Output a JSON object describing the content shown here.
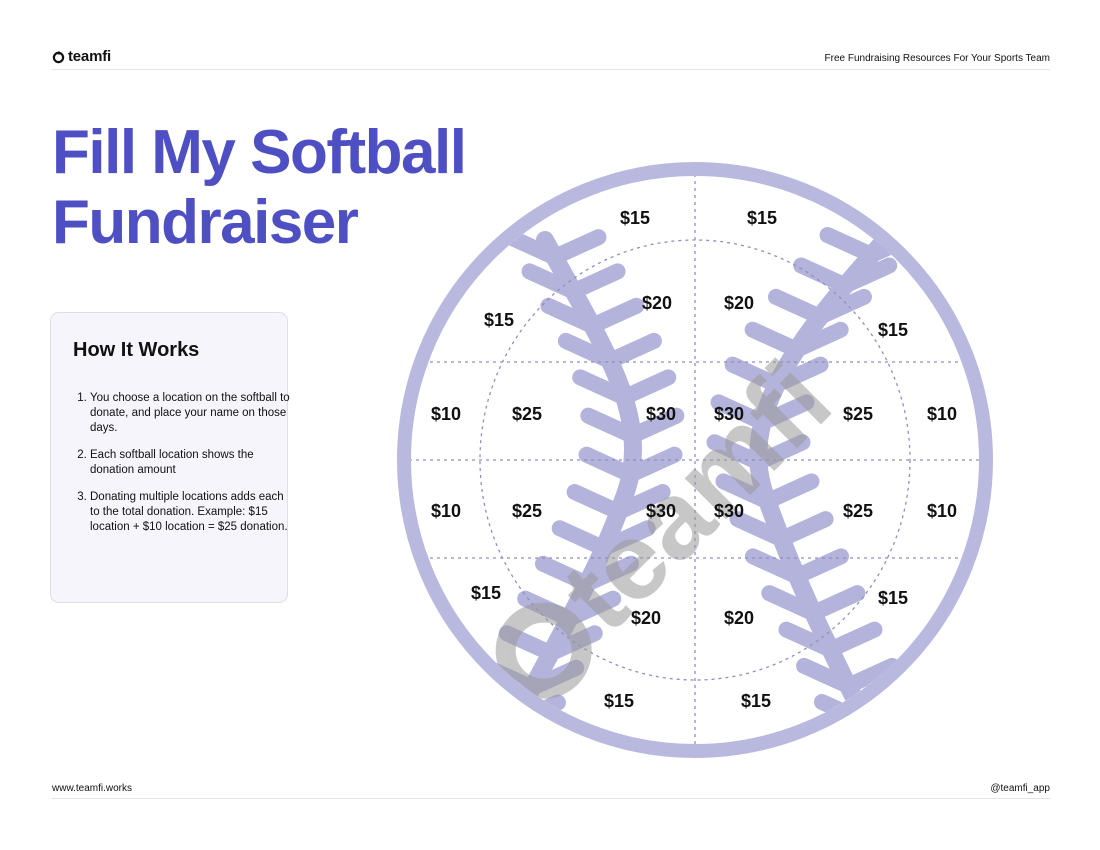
{
  "header": {
    "logo_text": "teamfi",
    "tagline": "Free Fundraising Resources For Your Sports Team"
  },
  "title": {
    "line1": "Fill My Softball",
    "line2": "Fundraiser"
  },
  "how_it_works": {
    "heading": "How It Works",
    "steps": [
      "You choose a location on the softball to donate, and place your name on those days.",
      "Each softball location shows the donation amount",
      "Donating multiple locations adds each to the total donation. Example: $15 location + $10 location = $25 donation."
    ]
  },
  "softball": {
    "watermark": "teamfi",
    "amounts": [
      "$15",
      "$15",
      "$15",
      "$20",
      "$20",
      "$15",
      "$10",
      "$25",
      "$30",
      "$30",
      "$25",
      "$10",
      "$10",
      "$25",
      "$30",
      "$30",
      "$25",
      "$10",
      "$15",
      "$20",
      "$20",
      "$15",
      "$15",
      "$15"
    ]
  },
  "footer": {
    "website": "www.teamfi.works",
    "handle": "@teamfi_app"
  },
  "colors": {
    "brand": "#4f4fc4",
    "ball_outline": "#b9b9e0",
    "stitches": "#b3b3db",
    "card_bg": "#f5f5fb"
  }
}
